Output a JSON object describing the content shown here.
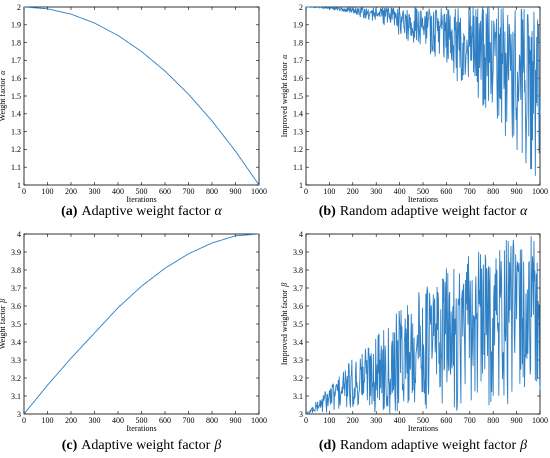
{
  "chart_data": [
    {
      "id": "a",
      "type": "line",
      "panel_label": "(a)",
      "caption": "Adaptive weight factor",
      "caption_symbol": "α",
      "xlabel": "Iterations",
      "ylabel": "Weight factor",
      "ylabel_symbol": "α",
      "xlim": [
        0,
        1000
      ],
      "ylim": [
        1,
        2
      ],
      "xticks": [
        0,
        100,
        200,
        300,
        400,
        500,
        600,
        700,
        800,
        900,
        1000
      ],
      "yticks": [
        1,
        1.1,
        1.2,
        1.3,
        1.4,
        1.5,
        1.6,
        1.7,
        1.8,
        1.9,
        2
      ],
      "series": [
        {
          "color": "#2e7fc4",
          "x": [
            0,
            100,
            200,
            300,
            400,
            500,
            600,
            700,
            800,
            900,
            1000
          ],
          "y": [
            2.0,
            1.99,
            1.96,
            1.91,
            1.84,
            1.75,
            1.64,
            1.51,
            1.36,
            1.19,
            1.0
          ]
        }
      ]
    },
    {
      "id": "b",
      "type": "line",
      "panel_label": "(b)",
      "caption": "Random adaptive weight factor",
      "caption_symbol": "α",
      "xlabel": "Iterations",
      "ylabel": "Improved weight factor",
      "ylabel_symbol": "α",
      "xlim": [
        0,
        1000
      ],
      "ylim": [
        1,
        2
      ],
      "xticks": [
        0,
        100,
        200,
        300,
        400,
        500,
        600,
        700,
        800,
        900,
        1000
      ],
      "yticks": [
        1,
        1.1,
        1.2,
        1.3,
        1.4,
        1.5,
        1.6,
        1.7,
        1.8,
        1.9,
        2
      ],
      "series": [
        {
          "color": "#2e7fc4",
          "pattern": "random oscillation between upper bound 2 and lower envelope 2 - (2 - alpha(t))",
          "envelope_x": [
            0,
            100,
            200,
            300,
            400,
            500,
            600,
            700,
            800,
            900,
            1000
          ],
          "upper_envelope": [
            2.0,
            2.0,
            2.0,
            2.0,
            2.0,
            2.0,
            2.0,
            2.0,
            2.0,
            2.0,
            2.0
          ],
          "lower_envelope": [
            2.0,
            1.99,
            1.96,
            1.91,
            1.84,
            1.75,
            1.64,
            1.51,
            1.36,
            1.19,
            1.0
          ]
        }
      ]
    },
    {
      "id": "c",
      "type": "line",
      "panel_label": "(c)",
      "caption": "Adaptive weight factor",
      "caption_symbol": "β",
      "xlabel": "Iterations",
      "ylabel": "Weight factor",
      "ylabel_symbol": "β",
      "xlim": [
        0,
        1000
      ],
      "ylim": [
        3,
        4
      ],
      "xticks": [
        0,
        100,
        200,
        300,
        400,
        500,
        600,
        700,
        800,
        900,
        1000
      ],
      "yticks": [
        3,
        3.1,
        3.2,
        3.3,
        3.4,
        3.5,
        3.6,
        3.7,
        3.8,
        3.9,
        4
      ],
      "series": [
        {
          "color": "#2e7fc4",
          "x": [
            0,
            100,
            200,
            300,
            400,
            500,
            600,
            700,
            800,
            900,
            1000
          ],
          "y": [
            3.0,
            3.16,
            3.31,
            3.45,
            3.59,
            3.71,
            3.81,
            3.89,
            3.95,
            3.99,
            4.0
          ]
        }
      ]
    },
    {
      "id": "d",
      "type": "line",
      "panel_label": "(d)",
      "caption": "Random adaptive weight factor",
      "caption_symbol": "β",
      "xlabel": "Iterations",
      "ylabel": "Improved weight factor",
      "ylabel_symbol": "β",
      "xlim": [
        0,
        1000
      ],
      "ylim": [
        3,
        4
      ],
      "xticks": [
        0,
        100,
        200,
        300,
        400,
        500,
        600,
        700,
        800,
        900,
        1000
      ],
      "yticks": [
        3,
        3.1,
        3.2,
        3.3,
        3.4,
        3.5,
        3.6,
        3.7,
        3.8,
        3.9,
        4
      ],
      "series": [
        {
          "color": "#2e7fc4",
          "pattern": "random oscillation between lower bound 3 and upper envelope beta(t)",
          "envelope_x": [
            0,
            100,
            200,
            300,
            400,
            500,
            600,
            700,
            800,
            900,
            1000
          ],
          "upper_envelope": [
            3.0,
            3.16,
            3.31,
            3.45,
            3.59,
            3.71,
            3.81,
            3.89,
            3.95,
            3.99,
            4.0
          ],
          "lower_envelope": [
            3.0,
            3.0,
            3.0,
            3.0,
            3.0,
            3.0,
            3.0,
            3.0,
            3.0,
            3.0,
            3.0
          ]
        }
      ]
    }
  ]
}
